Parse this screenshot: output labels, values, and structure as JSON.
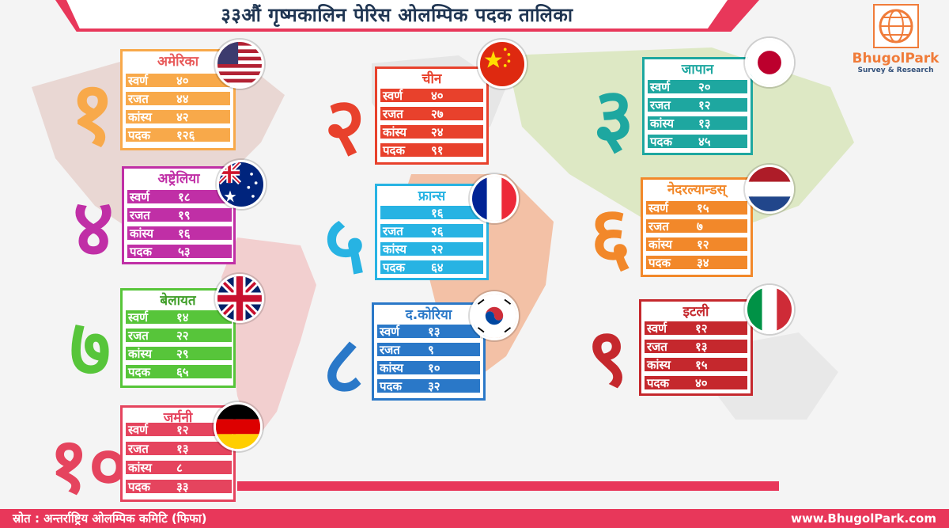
{
  "title": "३३औं गृष्मकालिन पेरिस ओलम्पिक पदक तालिका",
  "logo": {
    "name": "BhugolPark",
    "tagline": "Survey & Research"
  },
  "labels": {
    "gold": "स्वर्ण",
    "silver": "रजत",
    "bronze": "कांस्य",
    "total": "पदक"
  },
  "countries": [
    {
      "rank": "१",
      "name": "अमेरिका",
      "gold": "४०",
      "silver": "४४",
      "bronze": "४२",
      "total": "१२६",
      "color": "#f8a94a",
      "flag": "usa"
    },
    {
      "rank": "२",
      "name": "चीन",
      "gold": "४०",
      "silver": "२७",
      "bronze": "२४",
      "total": "९१",
      "color": "#e8412c",
      "flag": "china"
    },
    {
      "rank": "३",
      "name": "जापान",
      "gold": "२०",
      "silver": "१२",
      "bronze": "१३",
      "total": "४५",
      "color": "#1ea7a0",
      "flag": "japan"
    },
    {
      "rank": "४",
      "name": "अष्ट्रेलिया",
      "gold": "१८",
      "silver": "१९",
      "bronze": "१६",
      "total": "५३",
      "color": "#c02fa6",
      "flag": "australia"
    },
    {
      "rank": "५",
      "name": "फ्रान्स",
      "gold": "१६",
      "silver": "२६",
      "bronze": "२२",
      "total": "६४",
      "color": "#27b3e3",
      "flag": "france"
    },
    {
      "rank": "६",
      "name": "नेदरल्यान्डस्",
      "gold": "१५",
      "silver": "७",
      "bronze": "१२",
      "total": "३४",
      "color": "#f2882a",
      "flag": "netherlands"
    },
    {
      "rank": "७",
      "name": "बेलायत",
      "gold": "१४",
      "silver": "२२",
      "bronze": "२९",
      "total": "६५",
      "color": "#57c53a",
      "flag": "uk"
    },
    {
      "rank": "८",
      "name": "द.कोरिया",
      "gold": "१३",
      "silver": "९",
      "bronze": "१०",
      "total": "३२",
      "color": "#2a78c8",
      "flag": "korea"
    },
    {
      "rank": "९",
      "name": "इटली",
      "gold": "१२",
      "silver": "१३",
      "bronze": "१५",
      "total": "४०",
      "color": "#c5282d",
      "flag": "italy"
    },
    {
      "rank": "१०",
      "name": "जर्मनी",
      "gold": "१२",
      "silver": "१३",
      "bronze": "८",
      "total": "३३",
      "color": "#e5445e",
      "flag": "germany"
    }
  ],
  "footer": {
    "source": "स्रोत : अन्तर्राष्ट्रिय ओलम्पिक कमिटि (फिफा)",
    "website": "www.BhugolPark.com"
  }
}
